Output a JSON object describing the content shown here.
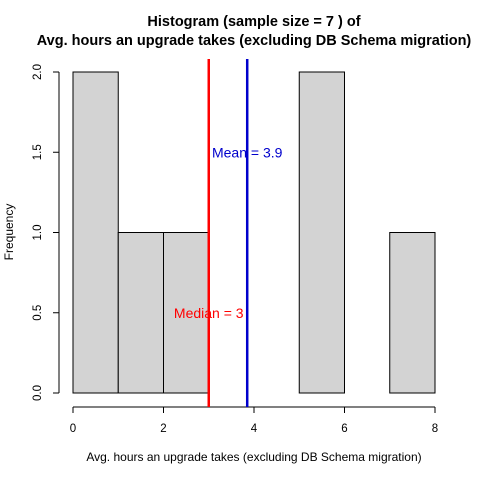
{
  "chart_data": {
    "type": "bar",
    "title_line1": "Histogram (sample size =  7 ) of",
    "title_line2": "Avg. hours an upgrade takes (excluding DB Schema migration)",
    "xlabel": "Avg. hours an upgrade takes (excluding DB Schema migration)",
    "ylabel": "Frequency",
    "bins": [
      {
        "from": 0,
        "to": 1,
        "count": 2
      },
      {
        "from": 1,
        "to": 2,
        "count": 1
      },
      {
        "from": 2,
        "to": 3,
        "count": 1
      },
      {
        "from": 3,
        "to": 4,
        "count": 0
      },
      {
        "from": 4,
        "to": 5,
        "count": 0
      },
      {
        "from": 5,
        "to": 6,
        "count": 2
      },
      {
        "from": 6,
        "to": 7,
        "count": 0
      },
      {
        "from": 7,
        "to": 8,
        "count": 1
      }
    ],
    "xlim": [
      0,
      8
    ],
    "ylim": [
      0,
      2
    ],
    "x_ticks": [
      "0",
      "2",
      "4",
      "6",
      "8"
    ],
    "y_ticks": [
      "0.0",
      "0.5",
      "1.0",
      "1.5",
      "2.0"
    ],
    "median": {
      "value": 3,
      "label": "Median = 3",
      "color": "#ff0000"
    },
    "mean": {
      "value": 3.85,
      "label": "Mean = 3.9",
      "color": "#0000cc"
    },
    "bar_color": "#d3d3d3"
  }
}
